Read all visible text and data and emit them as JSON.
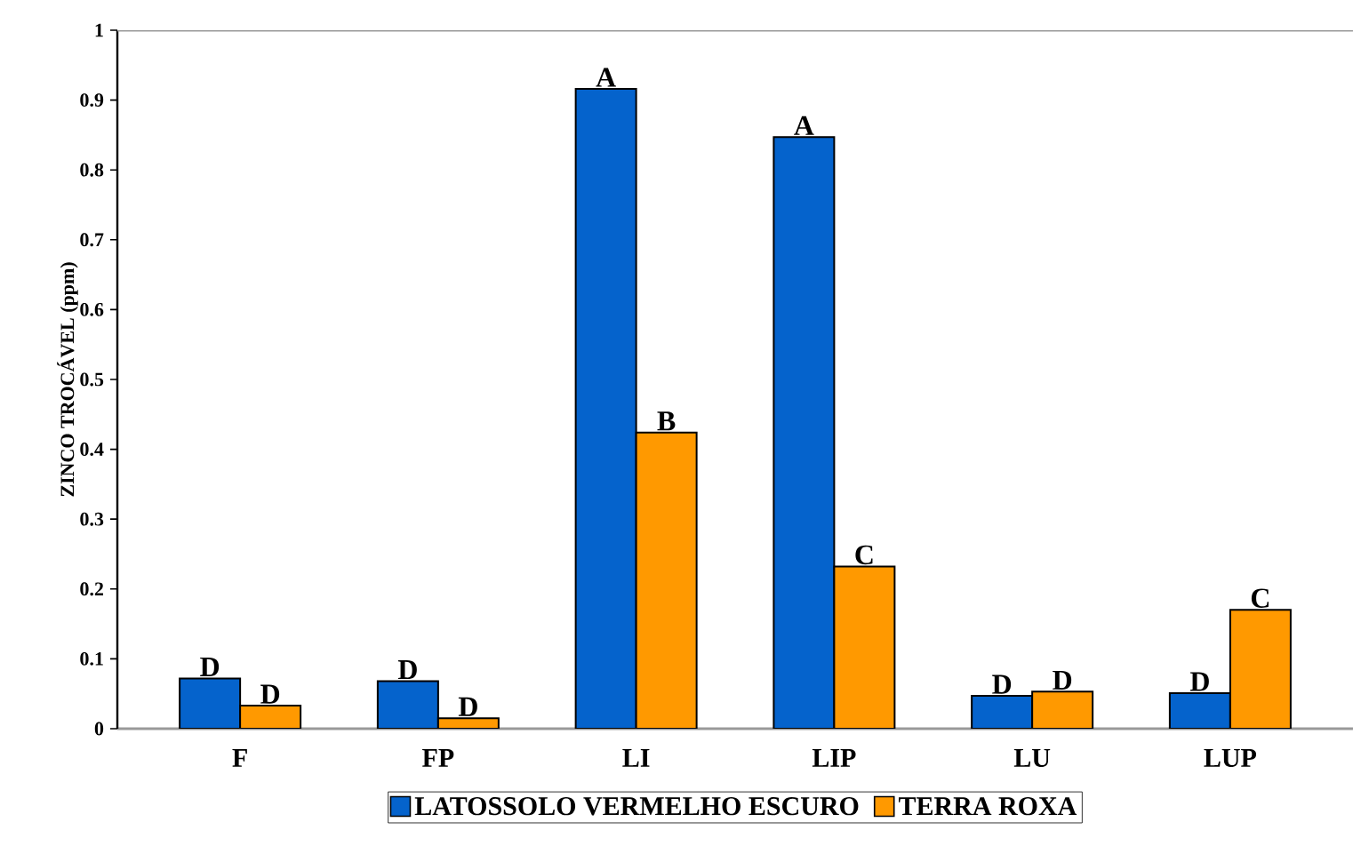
{
  "chart_data": {
    "type": "bar",
    "ylabel": "ZINCO TROCÁVEL (ppm)",
    "categories": [
      "F",
      "FP",
      "LI",
      "LIP",
      "LU",
      "LUP"
    ],
    "series": [
      {
        "name": "LATOSSOLO VERMELHO ESCURO",
        "color": "#0563cc",
        "values": [
          0.072,
          0.068,
          0.916,
          0.847,
          0.047,
          0.051
        ]
      },
      {
        "name": "TERRA ROXA",
        "color": "#ff9900",
        "values": [
          0.033,
          0.015,
          0.424,
          0.232,
          0.053,
          0.17
        ]
      }
    ],
    "ylim": [
      0,
      1
    ],
    "yticks": [
      0,
      0.1,
      0.2,
      0.3,
      0.4,
      0.5,
      0.6,
      0.7,
      0.8,
      0.9,
      1
    ],
    "grid": false,
    "legend": "bottom",
    "annotations": [
      {
        "text": "D",
        "x": "F",
        "y": 0.072
      },
      {
        "text": "D",
        "x": "F",
        "y": 0.033
      },
      {
        "text": "D",
        "x": "FP",
        "y": 0.068
      },
      {
        "text": "D",
        "x": "FP",
        "y": 0.015
      },
      {
        "text": "A",
        "x": "LI",
        "y": 0.916
      },
      {
        "text": "B",
        "x": "LI",
        "y": 0.424
      },
      {
        "text": "A",
        "x": "LIP",
        "y": 0.847
      },
      {
        "text": "C",
        "x": "LIP",
        "y": 0.232
      },
      {
        "text": "D",
        "x": "LU",
        "y": 0.047
      },
      {
        "text": "D",
        "x": "LU",
        "y": 0.053
      },
      {
        "text": "D",
        "x": "LUP",
        "y": 0.051
      },
      {
        "text": "C",
        "x": "LUP",
        "y": 0.17
      }
    ]
  }
}
